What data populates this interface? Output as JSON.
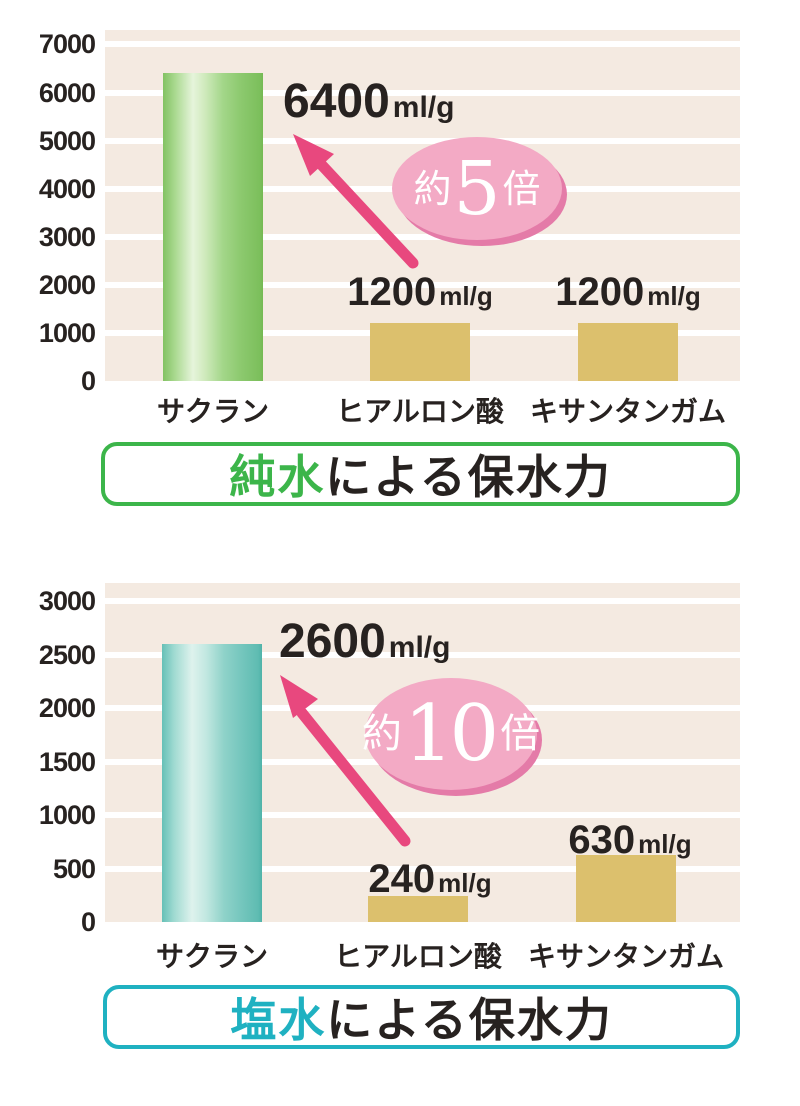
{
  "colors": {
    "background": "#ffffff",
    "plot_stripe": "#f4eae1",
    "grid_white": "#ffffff",
    "bar_tan": "#dcc06d",
    "bar_green": "#8cc96e",
    "bar_green_highlight": "#e6f4db",
    "bar_teal": "#74c6bd",
    "bar_teal_highlight": "#def2ed",
    "arrow_pink": "#e8487e",
    "badge_pink": "#f3aac5",
    "badge_pink_shadow": "#e47ba8",
    "title_green": "#3cb54a",
    "title_teal": "#1fb1c1",
    "text_dark": "#272220"
  },
  "chart_data": [
    {
      "type": "bar",
      "title": {
        "highlight": "純水",
        "rest": "による保水力",
        "full": "純水による保水力"
      },
      "ylim": [
        0,
        7300
      ],
      "yticks": [
        7000,
        6000,
        5000,
        4000,
        3000,
        2000,
        1000,
        0
      ],
      "grid": "horizontal-white-every-1000",
      "legend": "none",
      "categories": [
        "サクラン",
        "ヒアルロン酸",
        "キサンタンガム"
      ],
      "values": [
        6400,
        1200,
        1200
      ],
      "unit": "ml/g",
      "annotations": {
        "big_value": "6400",
        "small_values": [
          "1200",
          "1200"
        ],
        "multiplier": {
          "prefix": "約",
          "number": "5",
          "suffix": "倍"
        }
      }
    },
    {
      "type": "bar",
      "title": {
        "highlight": "塩水",
        "rest": "による保水力",
        "full": "塩水による保水力"
      },
      "ylim": [
        0,
        3170
      ],
      "yticks": [
        3000,
        2500,
        2000,
        1500,
        1000,
        500,
        0
      ],
      "grid": "horizontal-white-every-500",
      "legend": "none",
      "categories": [
        "サクラン",
        "ヒアルロン酸",
        "キサンタンガム"
      ],
      "values": [
        2600,
        240,
        630
      ],
      "unit": "ml/g",
      "annotations": {
        "big_value": "2600",
        "small_values": [
          "240",
          "630"
        ],
        "multiplier": {
          "prefix": "約",
          "number": "10",
          "suffix": "倍"
        }
      }
    }
  ]
}
